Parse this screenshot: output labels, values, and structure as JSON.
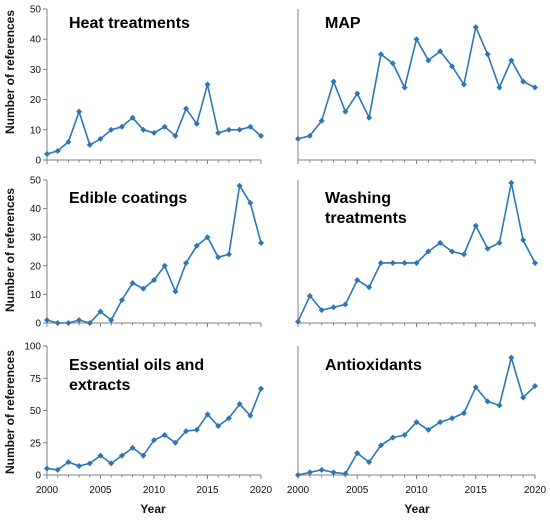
{
  "figure": {
    "ylabel": "Number of references",
    "xlabel": "Year",
    "series_color": "#2e75b6"
  },
  "chart_data": [
    {
      "type": "line",
      "title_lines": [
        "Heat treatments"
      ],
      "x": [
        2000,
        2001,
        2002,
        2003,
        2004,
        2005,
        2006,
        2007,
        2008,
        2009,
        2010,
        2011,
        2012,
        2013,
        2014,
        2015,
        2016,
        2017,
        2018,
        2019,
        2020
      ],
      "values": [
        2,
        3,
        6,
        16,
        5,
        7,
        10,
        11,
        14,
        10,
        9,
        11,
        8,
        17,
        12,
        25,
        9,
        10,
        10,
        11,
        8
      ],
      "ylim": [
        0,
        50
      ],
      "yticks": [
        0,
        10,
        20,
        30,
        40,
        50
      ],
      "xlim": [
        2000,
        2020
      ],
      "xticks": [],
      "grid": false
    },
    {
      "type": "line",
      "title_lines": [
        "MAP"
      ],
      "x": [
        2000,
        2001,
        2002,
        2003,
        2004,
        2005,
        2006,
        2007,
        2008,
        2009,
        2010,
        2011,
        2012,
        2013,
        2014,
        2015,
        2016,
        2017,
        2018,
        2019,
        2020
      ],
      "values": [
        7,
        8,
        13,
        26,
        16,
        22,
        14,
        35,
        32,
        24,
        40,
        33,
        36,
        31,
        25,
        44,
        35,
        24,
        33,
        26,
        24
      ],
      "ylim": [
        0,
        50
      ],
      "yticks": [],
      "xlim": [
        2000,
        2020
      ],
      "xticks": [],
      "grid": false
    },
    {
      "type": "line",
      "title_lines": [
        "Edible coatings"
      ],
      "x": [
        2000,
        2001,
        2002,
        2003,
        2004,
        2005,
        2006,
        2007,
        2008,
        2009,
        2010,
        2011,
        2012,
        2013,
        2014,
        2015,
        2016,
        2017,
        2018,
        2019,
        2020
      ],
      "values": [
        1,
        0,
        0,
        1,
        0,
        4,
        1,
        8,
        14,
        12,
        15,
        20,
        11,
        21,
        27,
        30,
        23,
        24,
        48,
        42,
        28
      ],
      "ylim": [
        0,
        50
      ],
      "yticks": [
        0,
        10,
        20,
        30,
        40,
        50
      ],
      "xlim": [
        2000,
        2020
      ],
      "xticks": [],
      "grid": false
    },
    {
      "type": "line",
      "title_lines": [
        "Washing",
        "treatments"
      ],
      "x": [
        2000,
        2001,
        2002,
        2003,
        2004,
        2005,
        2006,
        2007,
        2008,
        2009,
        2010,
        2011,
        2012,
        2013,
        2014,
        2015,
        2016,
        2017,
        2018,
        2019,
        2020
      ],
      "values": [
        0.5,
        9.5,
        4.5,
        5.5,
        6.5,
        15,
        12.5,
        21,
        21,
        21,
        21,
        25,
        28,
        25,
        24,
        34,
        26,
        28,
        49,
        29,
        21
      ],
      "ylim": [
        0,
        50
      ],
      "yticks": [],
      "xlim": [
        2000,
        2020
      ],
      "xticks": [],
      "grid": false
    },
    {
      "type": "line",
      "title_lines": [
        "Essential oils and",
        "extracts"
      ],
      "x": [
        2000,
        2001,
        2002,
        2003,
        2004,
        2005,
        2006,
        2007,
        2008,
        2009,
        2010,
        2011,
        2012,
        2013,
        2014,
        2015,
        2016,
        2017,
        2018,
        2019,
        2020
      ],
      "values": [
        5,
        4,
        10,
        7,
        9,
        15,
        9,
        15,
        21,
        15,
        27,
        31,
        25,
        34,
        35,
        47,
        38,
        44,
        55,
        46,
        67
      ],
      "ylim": [
        0,
        100
      ],
      "yticks": [
        0,
        25,
        50,
        75,
        100
      ],
      "xlim": [
        2000,
        2020
      ],
      "xticks": [
        2000,
        2005,
        2010,
        2015,
        2020
      ],
      "grid": false
    },
    {
      "type": "line",
      "title_lines": [
        "Antioxidants"
      ],
      "x": [
        2000,
        2001,
        2002,
        2003,
        2004,
        2005,
        2006,
        2007,
        2008,
        2009,
        2010,
        2011,
        2012,
        2013,
        2014,
        2015,
        2016,
        2017,
        2018,
        2019,
        2020
      ],
      "values": [
        0,
        2,
        4,
        2,
        1,
        17,
        10,
        23,
        29,
        31,
        41,
        35,
        41,
        44,
        48,
        68,
        57,
        54,
        91,
        60,
        69
      ],
      "ylim": [
        0,
        100
      ],
      "yticks": [],
      "xlim": [
        2000,
        2020
      ],
      "xticks": [
        2000,
        2005,
        2010,
        2015,
        2020
      ],
      "grid": false
    }
  ]
}
